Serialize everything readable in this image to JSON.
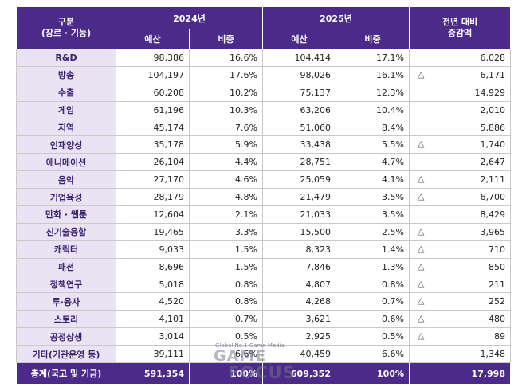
{
  "header": {
    "category_line1": "구분",
    "category_line2": "(장르 · 기능)",
    "year_2024": "2024년",
    "year_2025": "2025년",
    "change_line1": "전년 대비",
    "change_line2": "증감액",
    "budget_label": "예산",
    "ratio_label": "비중"
  },
  "rows": [
    {
      "name": "R&D",
      "b2024": "98,386",
      "r2024": "16.6%",
      "b2025": "104,414",
      "r2025": "17.1%",
      "mark": "",
      "delta": "6,028"
    },
    {
      "name": "방송",
      "b2024": "104,197",
      "r2024": "17.6%",
      "b2025": "98,026",
      "r2025": "16.1%",
      "mark": "△",
      "delta": "6,171"
    },
    {
      "name": "수출",
      "b2024": "60,208",
      "r2024": "10.2%",
      "b2025": "75,137",
      "r2025": "12.3%",
      "mark": "",
      "delta": "14,929"
    },
    {
      "name": "게임",
      "b2024": "61,196",
      "r2024": "10.3%",
      "b2025": "63,206",
      "r2025": "10.4%",
      "mark": "",
      "delta": "2,010"
    },
    {
      "name": "지역",
      "b2024": "45,174",
      "r2024": "7.6%",
      "b2025": "51,060",
      "r2025": "8.4%",
      "mark": "",
      "delta": "5,886"
    },
    {
      "name": "인재양성",
      "b2024": "35,178",
      "r2024": "5.9%",
      "b2025": "33,438",
      "r2025": "5.5%",
      "mark": "△",
      "delta": "1,740"
    },
    {
      "name": "애니메이션",
      "b2024": "26,104",
      "r2024": "4.4%",
      "b2025": "28,751",
      "r2025": "4.7%",
      "mark": "",
      "delta": "2,647"
    },
    {
      "name": "음악",
      "b2024": "27,170",
      "r2024": "4.6%",
      "b2025": "25,059",
      "r2025": "4.1%",
      "mark": "△",
      "delta": "2,111"
    },
    {
      "name": "기업육성",
      "b2024": "28,179",
      "r2024": "4.8%",
      "b2025": "21,479",
      "r2025": "3.5%",
      "mark": "△",
      "delta": "6,700"
    },
    {
      "name": "만화 · 웹툰",
      "b2024": "12,604",
      "r2024": "2.1%",
      "b2025": "21,033",
      "r2025": "3.5%",
      "mark": "",
      "delta": "8,429"
    },
    {
      "name": "신기술융합",
      "b2024": "19,465",
      "r2024": "3.3%",
      "b2025": "15,500",
      "r2025": "2.5%",
      "mark": "△",
      "delta": "3,965"
    },
    {
      "name": "캐릭터",
      "b2024": "9,033",
      "r2024": "1.5%",
      "b2025": "8,323",
      "r2025": "1.4%",
      "mark": "△",
      "delta": "710"
    },
    {
      "name": "패션",
      "b2024": "8,696",
      "r2024": "1.5%",
      "b2025": "7,846",
      "r2025": "1.3%",
      "mark": "△",
      "delta": "850"
    },
    {
      "name": "정책연구",
      "b2024": "5,018",
      "r2024": "0.8%",
      "b2025": "4,807",
      "r2025": "0.8%",
      "mark": "△",
      "delta": "211"
    },
    {
      "name": "투·융자",
      "b2024": "4,520",
      "r2024": "0.8%",
      "b2025": "4,268",
      "r2025": "0.7%",
      "mark": "△",
      "delta": "252"
    },
    {
      "name": "스토리",
      "b2024": "4,101",
      "r2024": "0.7%",
      "b2025": "3,621",
      "r2025": "0.6%",
      "mark": "△",
      "delta": "480"
    },
    {
      "name": "공정상생",
      "b2024": "3,014",
      "r2024": "0.5%",
      "b2025": "2,925",
      "r2025": "0.5%",
      "mark": "△",
      "delta": "89"
    },
    {
      "name": "기타(기관운영 등)",
      "b2024": "39,111",
      "r2024": "6.6%",
      "b2025": "40,459",
      "r2025": "6.6%",
      "mark": "",
      "delta": "1,348"
    }
  ],
  "total": {
    "name": "총계(국고 및 기금)",
    "b2024": "591,354",
    "r2024": "100%",
    "b2025": "609,352",
    "r2025": "100%",
    "delta": "17,998"
  },
  "watermark": {
    "tagline": "Global No.1 Game Media",
    "line1": "GAME",
    "line2": "FOCUS"
  }
}
